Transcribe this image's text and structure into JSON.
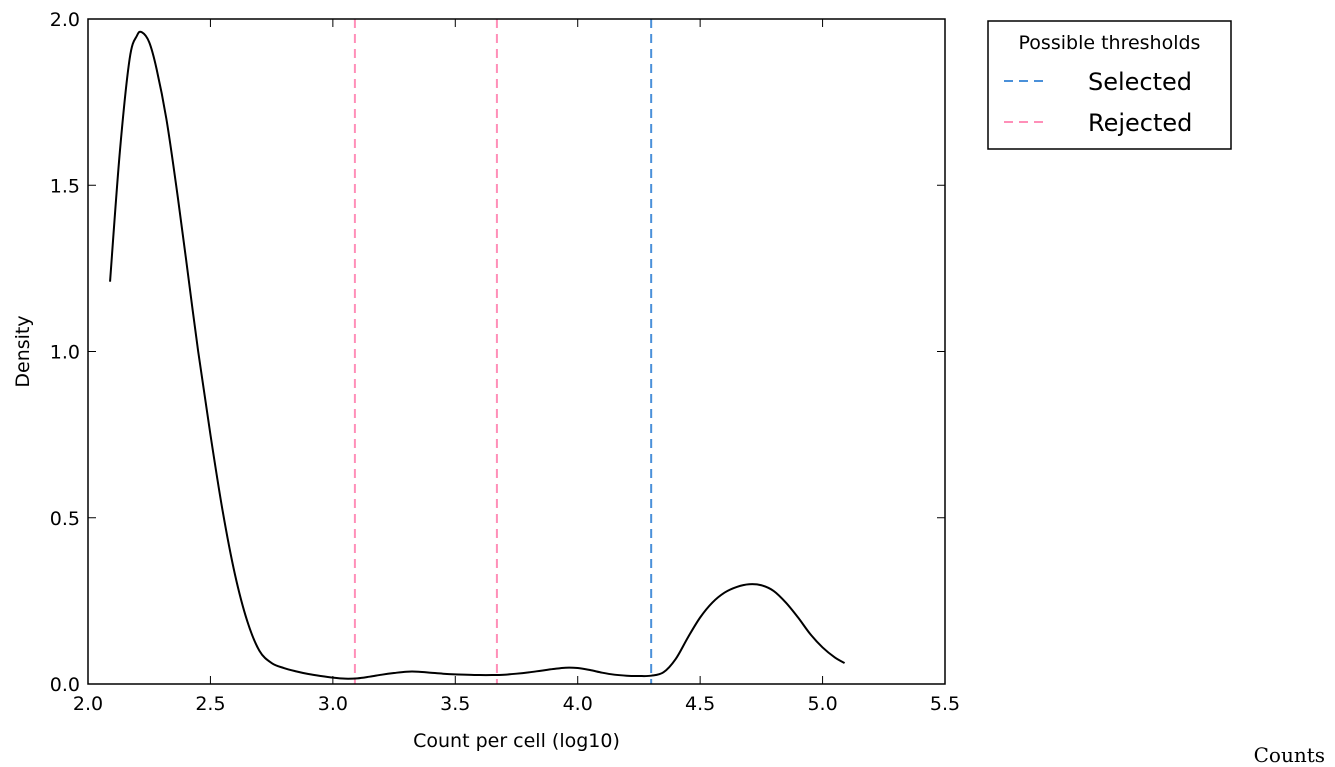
{
  "caption": "Counts",
  "chart_data": {
    "type": "line",
    "title": "",
    "xlabel": "Count per cell (log10)",
    "ylabel": "Density",
    "xlim": [
      2.0,
      5.5
    ],
    "ylim": [
      0.0,
      2.0
    ],
    "xticks": [
      "2.0",
      "2.5",
      "3.0",
      "3.5",
      "4.0",
      "4.5",
      "5.0",
      "5.5"
    ],
    "yticks": [
      "0.0",
      "0.5",
      "1.0",
      "1.5",
      "2.0"
    ],
    "grid": false,
    "series": [
      {
        "color": "#000000",
        "x": [
          2.09,
          2.13,
          2.17,
          2.2,
          2.22,
          2.25,
          2.28,
          2.32,
          2.36,
          2.4,
          2.45,
          2.5,
          2.55,
          2.6,
          2.65,
          2.7,
          2.75,
          2.8,
          2.85,
          2.9,
          2.95,
          3.0,
          3.05,
          3.1,
          3.15,
          3.2,
          3.25,
          3.3,
          3.35,
          3.4,
          3.45,
          3.5,
          3.55,
          3.6,
          3.65,
          3.7,
          3.75,
          3.8,
          3.85,
          3.9,
          3.95,
          4.0,
          4.05,
          4.1,
          4.15,
          4.2,
          4.25,
          4.3,
          4.35,
          4.4,
          4.45,
          4.5,
          4.55,
          4.6,
          4.65,
          4.7,
          4.75,
          4.8,
          4.85,
          4.9,
          4.95,
          5.0,
          5.05,
          5.09
        ],
        "y": [
          1.21,
          1.6,
          1.88,
          1.95,
          1.96,
          1.93,
          1.85,
          1.7,
          1.5,
          1.28,
          1.0,
          0.75,
          0.52,
          0.33,
          0.19,
          0.1,
          0.063,
          0.048,
          0.038,
          0.03,
          0.024,
          0.019,
          0.016,
          0.017,
          0.022,
          0.028,
          0.033,
          0.037,
          0.037,
          0.034,
          0.031,
          0.029,
          0.028,
          0.027,
          0.027,
          0.028,
          0.031,
          0.035,
          0.04,
          0.045,
          0.049,
          0.048,
          0.042,
          0.034,
          0.028,
          0.025,
          0.024,
          0.025,
          0.035,
          0.075,
          0.14,
          0.2,
          0.245,
          0.275,
          0.292,
          0.3,
          0.297,
          0.28,
          0.245,
          0.2,
          0.15,
          0.11,
          0.08,
          0.063
        ]
      }
    ],
    "thresholds": [
      {
        "x": 3.09,
        "status": "Rejected",
        "color": "#ff8fb8"
      },
      {
        "x": 3.67,
        "status": "Rejected",
        "color": "#ff8fb8"
      },
      {
        "x": 4.3,
        "status": "Selected",
        "color": "#4a90d9"
      }
    ],
    "legend": {
      "title": "Possible thresholds",
      "placement": "outside-top-right",
      "entries": [
        {
          "label": "Selected",
          "color": "#4a90d9"
        },
        {
          "label": "Rejected",
          "color": "#ff8fb8"
        }
      ]
    }
  }
}
